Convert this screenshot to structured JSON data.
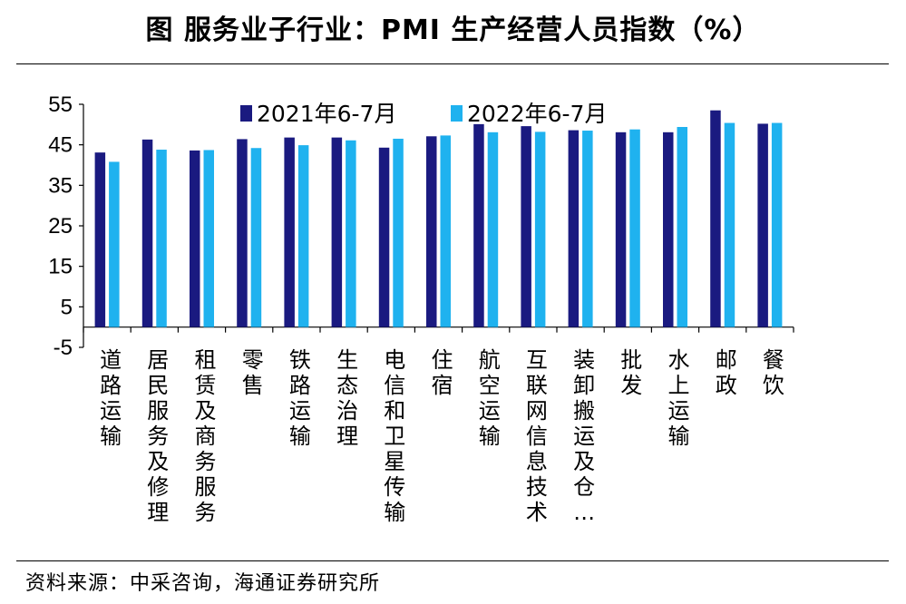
{
  "title": "图  服务业子行业：PMI 生产经营人员指数（%）",
  "source": "资料来源：中采咨询，海通证券研究所",
  "colors": {
    "series1": "#1a1a80",
    "series2": "#1fb2ef",
    "axis": "#000000"
  },
  "chart_data": {
    "type": "bar",
    "title": "图  服务业子行业：PMI 生产经营人员指数（%）",
    "xlabel": "",
    "ylabel": "",
    "ylim": [
      -5,
      55
    ],
    "yticks": [
      -5,
      5,
      15,
      25,
      35,
      45,
      55
    ],
    "legend_position": "top",
    "categories": [
      "道路运输",
      "居民服务及修理",
      "租赁及商务服务",
      "零售",
      "铁路运输",
      "生态治理",
      "电信和卫星传输",
      "住宿",
      "航空运输",
      "互联网信息技术",
      "装卸搬运及仓…",
      "批发",
      "水上运输",
      "邮政",
      "餐饮"
    ],
    "series": [
      {
        "name": "2021年6-7月",
        "values": [
          43.1,
          46.3,
          43.6,
          46.4,
          46.8,
          46.8,
          44.3,
          47.1,
          50.1,
          49.6,
          48.6,
          48.1,
          48.1,
          53.5,
          50.2
        ]
      },
      {
        "name": "2022年6-7月",
        "values": [
          40.8,
          43.8,
          43.7,
          44.2,
          44.9,
          46.1,
          46.5,
          47.3,
          48.1,
          48.2,
          48.5,
          48.8,
          49.4,
          50.4,
          50.4
        ]
      }
    ]
  }
}
